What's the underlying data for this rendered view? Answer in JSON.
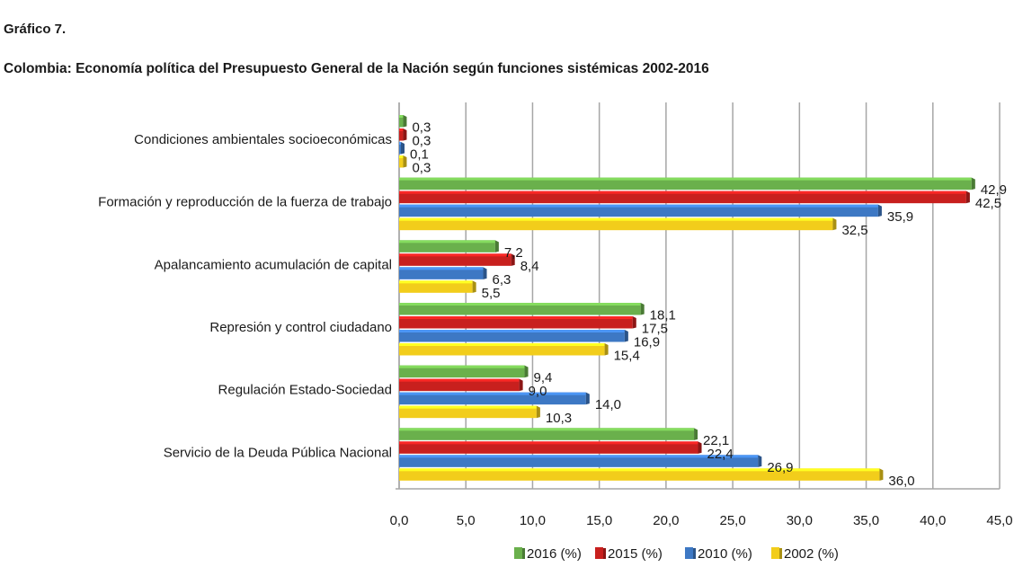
{
  "header": {
    "chart_number": "Gráfico 7.",
    "title": "Colombia: Economía política del Presupuesto General de la Nación según funciones sistémicas 2002-2016"
  },
  "colors": {
    "2016 (%)": "#6ab04c",
    "2015 (%)": "#c8201e",
    "2010 (%)": "#3d78c4",
    "2002 (%)": "#f2cd1b",
    "grid": "#a6a6a6"
  },
  "chart_data": {
    "type": "bar",
    "orientation": "horizontal",
    "categories": [
      "Condiciones ambientales socioeconómicas",
      "Formación y reproducción  de la fuerza de trabajo",
      "Apalancamiento acumulación de capital",
      "Represión y control  ciudadano",
      "Regulación Estado-Sociedad",
      "Servicio de la Deuda Pública Nacional"
    ],
    "series": [
      {
        "name": "2016 (%)",
        "values": [
          0.3,
          42.9,
          7.2,
          18.1,
          9.4,
          22.1
        ],
        "labels": [
          "0,3",
          "42,9",
          "7,2",
          "18,1",
          "9,4",
          "22,1"
        ]
      },
      {
        "name": "2015 (%)",
        "values": [
          0.3,
          42.5,
          8.4,
          17.5,
          9.0,
          22.4
        ],
        "labels": [
          "0,3",
          "42,5",
          "8,4",
          "17,5",
          "9,0",
          "22,4"
        ]
      },
      {
        "name": "2010 (%)",
        "values": [
          0.1,
          35.9,
          6.3,
          16.9,
          14.0,
          26.9
        ],
        "labels": [
          "0,1",
          "35,9",
          "6,3",
          "16,9",
          "14,0",
          "26,9"
        ]
      },
      {
        "name": "2002 (%)",
        "values": [
          0.3,
          32.5,
          5.5,
          15.4,
          10.3,
          36.0
        ],
        "labels": [
          "0,3",
          "32,5",
          "5,5",
          "15,4",
          "10,3",
          "36,0"
        ]
      }
    ],
    "xlim": [
      0,
      45
    ],
    "x_ticks": [
      "0,0",
      "5,0",
      "10,0",
      "15,0",
      "20,0",
      "25,0",
      "30,0",
      "35,0",
      "40,0",
      "45,0"
    ],
    "grid": "vertical",
    "legend": "bottom"
  }
}
